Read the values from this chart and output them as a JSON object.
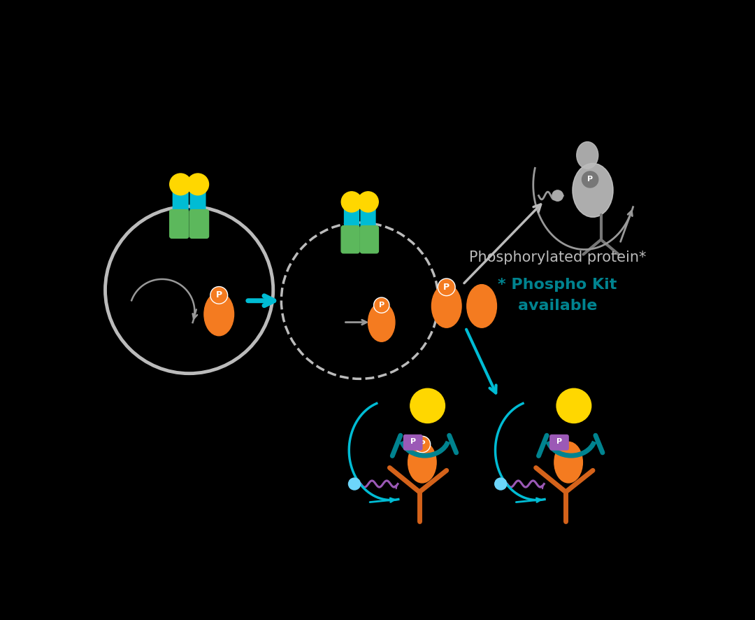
{
  "bg_color": "#000000",
  "teal": "#00BCD4",
  "teal_dark": "#00838F",
  "green": "#5CB85C",
  "yellow": "#FFD700",
  "orange": "#F47B20",
  "gray_light": "#BBBBBB",
  "gray_mid": "#999999",
  "gray_dark": "#777777",
  "purple": "#9B59B6",
  "white": "#FFFFFF",
  "phospho_text1": "Phosphorylated protein*",
  "phospho_text2": "* Phospho Kit",
  "phospho_text3": "available"
}
